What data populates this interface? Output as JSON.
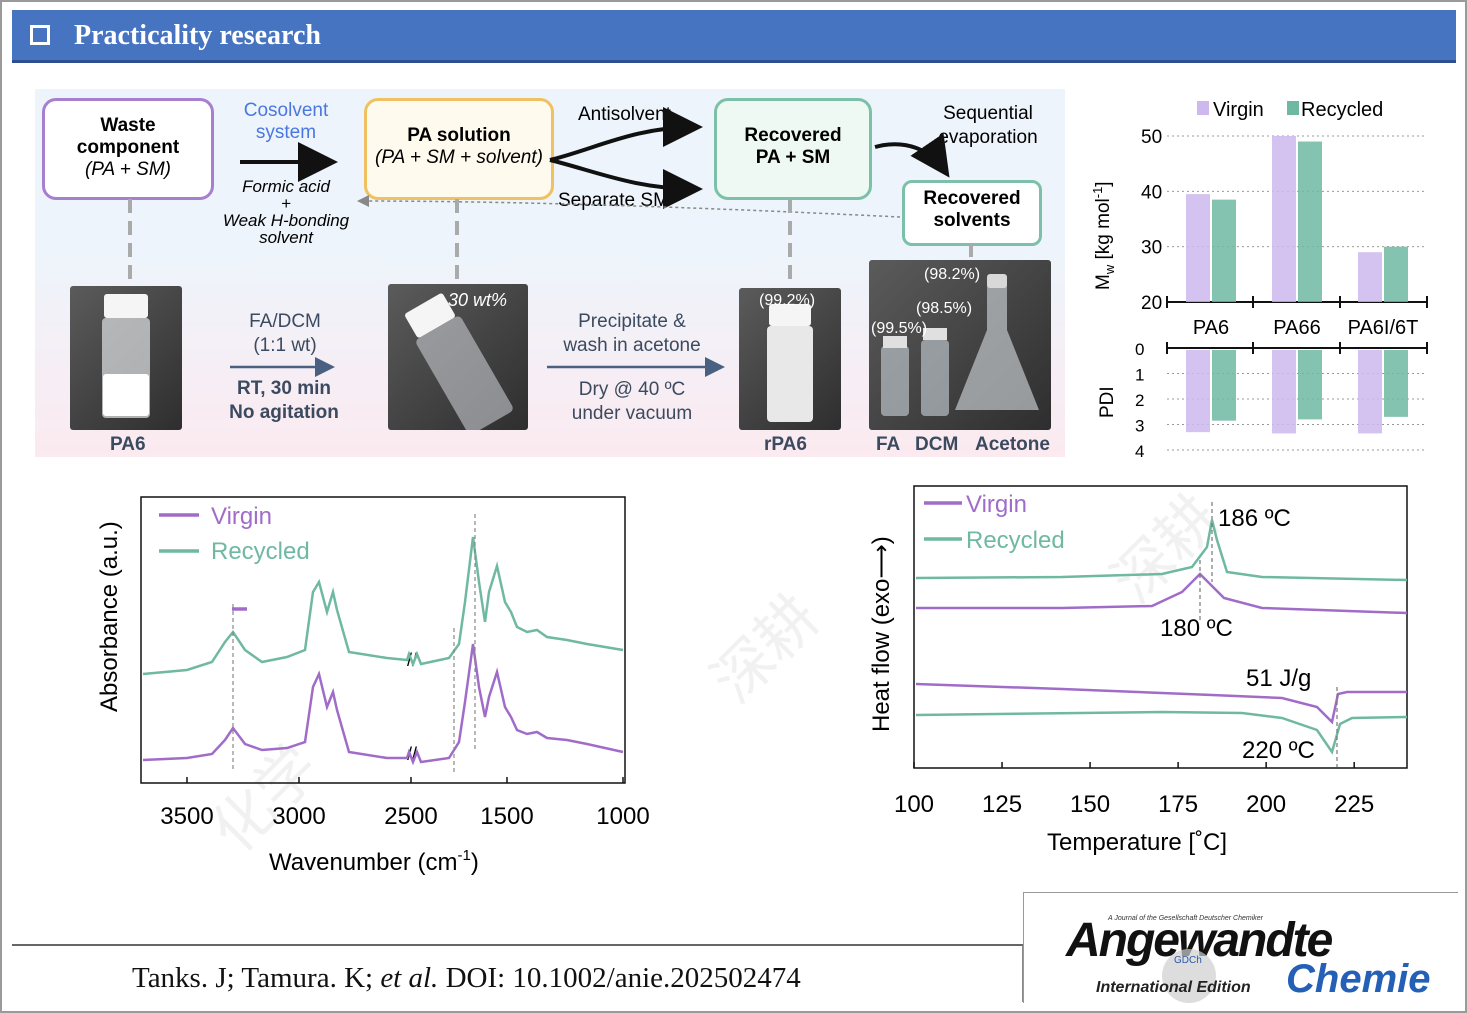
{
  "header": {
    "title": "Practicality research"
  },
  "scheme": {
    "waste": [
      "Waste",
      "component",
      "(PA + SM)"
    ],
    "cosolvent": [
      "Cosolvent",
      "system"
    ],
    "formic": [
      "Formic acid",
      "+",
      "Weak H-bonding",
      "solvent"
    ],
    "pa_solution": [
      "PA solution",
      "(PA + SM + solvent)"
    ],
    "antisolvent": "Antisolvent",
    "separate_sm": "Separate SM",
    "recovered_pa": [
      "Recovered",
      "PA + SM"
    ],
    "sequential": [
      "Sequential",
      "evaporation"
    ],
    "recovered_solvents": [
      "Recovered",
      "solvents"
    ],
    "pa6": "PA6",
    "fadcm": [
      "FA/DCM",
      "(1:1 wt)"
    ],
    "rt": [
      "RT, 30 min",
      "No agitation"
    ],
    "wt": "30 wt%",
    "precip": [
      "Precipitate &",
      "wash in acetone"
    ],
    "dry": [
      "Dry @ 40 ºC",
      "under vacuum"
    ],
    "rpa6_pct": "(99.2%)",
    "rpa6": "rPA6",
    "pct_fa": "(99.5%)",
    "pct_dcm": "(98.5%)",
    "pct_acetone": "(98.2%)",
    "fa": "FA",
    "dcm": "DCM",
    "acetone": "Acetone"
  },
  "colors": {
    "virgin": "#a06cc8",
    "recycled": "#6fb8a2",
    "header": "#4674c1"
  },
  "chart_data": [
    {
      "type": "bar",
      "categories": [
        "PA6",
        "PA66",
        "PA6I/6T"
      ],
      "legend": [
        "Virgin",
        "Recycled"
      ],
      "ylabel": "M_w [kg mol⁻¹]",
      "ylabel_main": "M",
      "ylabel_sub": "w",
      "ylabel_rest": " [kg mol",
      "ylabel_sup": "-1",
      "ylabel_end": "]",
      "ylim": [
        20,
        50
      ],
      "yticks": [
        "20",
        "30",
        "40",
        "50"
      ],
      "series": [
        {
          "name": "Virgin",
          "values": [
            39.5,
            50,
            29
          ]
        },
        {
          "name": "Recycled",
          "values": [
            38.5,
            49,
            30
          ]
        }
      ]
    },
    {
      "type": "bar",
      "categories": [
        "PA6",
        "PA66",
        "PA6I/6T"
      ],
      "ylabel": "PDI",
      "ylim": [
        0,
        4
      ],
      "yticks": [
        "0",
        "1",
        "2",
        "3",
        "4"
      ],
      "series": [
        {
          "name": "Virgin",
          "values": [
            3.3,
            3.35,
            3.35
          ]
        },
        {
          "name": "Recycled",
          "values": [
            2.85,
            2.8,
            2.7
          ]
        }
      ]
    },
    {
      "type": "line",
      "legend": [
        "Virgin",
        "Recycled"
      ],
      "xlabel": "Wavenumber (cm⁻¹)",
      "xlabel_main": "Wavenumber (cm",
      "xlabel_sup": "-1",
      "xlabel_end": ")",
      "ylabel": "Absorbance (a.u.)",
      "xticks": [
        "3500",
        "3000",
        "2500",
        "1500",
        "1000"
      ],
      "series": [
        {
          "name": "Virgin",
          "x": [
            3700,
            3300,
            2930,
            2860,
            1640,
            1540,
            1000
          ],
          "y": [
            0.02,
            0.25,
            0.85,
            0.65,
            1.0,
            0.8,
            0.1
          ]
        },
        {
          "name": "Recycled",
          "x": [
            3700,
            3300,
            2930,
            2860,
            1640,
            1540,
            1000
          ],
          "y": [
            0.02,
            0.25,
            0.8,
            0.62,
            1.0,
            0.75,
            0.1
          ]
        }
      ]
    },
    {
      "type": "line",
      "legend": [
        "Virgin",
        "Recycled"
      ],
      "xlabel": "Temperature [˚C]",
      "ylabel": "Heat flow (exo⟶)",
      "xlim": [
        100,
        240
      ],
      "xticks": [
        "100",
        "125",
        "150",
        "175",
        "200",
        "225"
      ],
      "annotations": [
        "186 ºC",
        "180 ºC",
        "51 J/g",
        "220 ºC"
      ],
      "peaks": {
        "cryst_recycled": 186,
        "cryst_virgin": 180,
        "melt": 220
      }
    }
  ],
  "citation": {
    "pre": "Tanks. J; Tamura. K; ",
    "etal": "et al.",
    "post": " DOI: 10.1002/anie.202502474"
  },
  "logo": {
    "journal_of": "A Journal of the Gesellschaft Deutscher Chemiker",
    "word1": "Angewandte",
    "word2": "Chemie",
    "edition": "International Edition",
    "badge": "GDCh"
  }
}
